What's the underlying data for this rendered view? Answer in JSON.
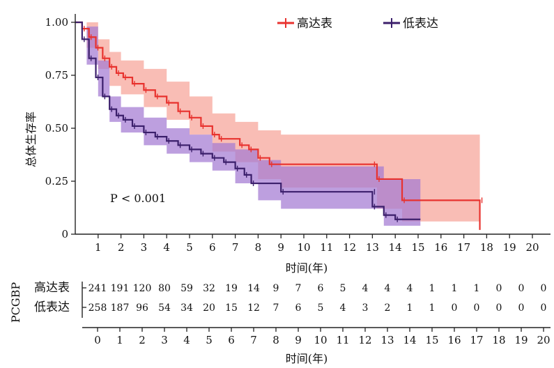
{
  "chart_data": {
    "type": "line",
    "subtype": "kaplan-meier",
    "title": "",
    "xlabel": "时间(年)",
    "ylabel": "总体生存率",
    "xlim": [
      0,
      20
    ],
    "ylim": [
      0,
      1
    ],
    "x_ticks": [
      1,
      2,
      3,
      4,
      5,
      6,
      7,
      8,
      9,
      10,
      11,
      12,
      13,
      14,
      15,
      16,
      17,
      18,
      19,
      20
    ],
    "y_ticks": [
      "0",
      "0.25",
      "0.50",
      "0.75",
      "1.00"
    ],
    "annotation": "P < 0.001",
    "legend_position": "top-right",
    "series": [
      {
        "name": "高达表",
        "color": "#e8322e",
        "band_color": "#f7a399",
        "steps": [
          [
            0,
            1.0
          ],
          [
            0.3,
            0.97
          ],
          [
            0.6,
            0.93
          ],
          [
            0.9,
            0.88
          ],
          [
            1.2,
            0.83
          ],
          [
            1.5,
            0.79
          ],
          [
            1.8,
            0.76
          ],
          [
            2.1,
            0.74
          ],
          [
            2.5,
            0.71
          ],
          [
            3.0,
            0.68
          ],
          [
            3.5,
            0.65
          ],
          [
            4.0,
            0.62
          ],
          [
            4.5,
            0.58
          ],
          [
            5.0,
            0.55
          ],
          [
            5.5,
            0.51
          ],
          [
            6.0,
            0.47
          ],
          [
            6.3,
            0.45
          ],
          [
            7.2,
            0.42
          ],
          [
            7.6,
            0.4
          ],
          [
            8.0,
            0.36
          ],
          [
            8.5,
            0.33
          ],
          [
            13.0,
            0.33
          ],
          [
            13.2,
            0.26
          ],
          [
            14.3,
            0.16
          ],
          [
            17.7,
            0.16
          ],
          [
            17.7,
            0.02
          ]
        ],
        "lower": [
          [
            0,
            1.0
          ],
          [
            0.5,
            0.88
          ],
          [
            1.0,
            0.78
          ],
          [
            1.5,
            0.7
          ],
          [
            2.0,
            0.66
          ],
          [
            3.0,
            0.6
          ],
          [
            4.0,
            0.54
          ],
          [
            5.0,
            0.47
          ],
          [
            6.0,
            0.39
          ],
          [
            7.0,
            0.34
          ],
          [
            8.0,
            0.26
          ],
          [
            9.0,
            0.22
          ],
          [
            13.0,
            0.22
          ],
          [
            13.2,
            0.12
          ],
          [
            14.3,
            0.06
          ],
          [
            17.7,
            0.06
          ]
        ],
        "upper": [
          [
            0,
            1.0
          ],
          [
            0.5,
            1.0
          ],
          [
            1.0,
            0.92
          ],
          [
            1.5,
            0.86
          ],
          [
            2.0,
            0.82
          ],
          [
            3.0,
            0.78
          ],
          [
            4.0,
            0.72
          ],
          [
            5.0,
            0.65
          ],
          [
            6.0,
            0.57
          ],
          [
            7.0,
            0.53
          ],
          [
            8.0,
            0.49
          ],
          [
            9.0,
            0.47
          ],
          [
            13.0,
            0.47
          ],
          [
            17.7,
            0.47
          ]
        ]
      },
      {
        "name": "低表达",
        "color": "#3b1f6b",
        "band_color": "#a47ad2",
        "steps": [
          [
            0,
            1.0
          ],
          [
            0.3,
            0.92
          ],
          [
            0.6,
            0.83
          ],
          [
            0.9,
            0.74
          ],
          [
            1.2,
            0.65
          ],
          [
            1.5,
            0.59
          ],
          [
            1.8,
            0.56
          ],
          [
            2.1,
            0.54
          ],
          [
            2.5,
            0.51
          ],
          [
            3.0,
            0.48
          ],
          [
            3.5,
            0.46
          ],
          [
            4.0,
            0.44
          ],
          [
            4.5,
            0.42
          ],
          [
            5.0,
            0.4
          ],
          [
            5.5,
            0.38
          ],
          [
            6.0,
            0.36
          ],
          [
            6.5,
            0.34
          ],
          [
            7.0,
            0.31
          ],
          [
            7.4,
            0.28
          ],
          [
            7.7,
            0.24
          ],
          [
            9.0,
            0.2
          ],
          [
            13.0,
            0.2
          ],
          [
            13.0,
            0.13
          ],
          [
            13.5,
            0.09
          ],
          [
            14.0,
            0.07
          ],
          [
            15.1,
            0.07
          ]
        ],
        "lower": [
          [
            0,
            1.0
          ],
          [
            0.5,
            0.8
          ],
          [
            1.0,
            0.65
          ],
          [
            1.5,
            0.53
          ],
          [
            2.0,
            0.48
          ],
          [
            3.0,
            0.42
          ],
          [
            4.0,
            0.38
          ],
          [
            5.0,
            0.34
          ],
          [
            6.0,
            0.3
          ],
          [
            7.0,
            0.24
          ],
          [
            8.0,
            0.16
          ],
          [
            9.0,
            0.12
          ],
          [
            13.0,
            0.12
          ],
          [
            13.5,
            0.04
          ],
          [
            15.1,
            0.04
          ]
        ],
        "upper": [
          [
            0,
            1.0
          ],
          [
            0.5,
            0.98
          ],
          [
            1.0,
            0.82
          ],
          [
            1.5,
            0.65
          ],
          [
            2.0,
            0.6
          ],
          [
            3.0,
            0.55
          ],
          [
            4.0,
            0.5
          ],
          [
            5.0,
            0.47
          ],
          [
            6.0,
            0.43
          ],
          [
            7.0,
            0.4
          ],
          [
            8.0,
            0.35
          ],
          [
            9.0,
            0.32
          ],
          [
            13.0,
            0.32
          ],
          [
            13.5,
            0.26
          ],
          [
            15.1,
            0.26
          ]
        ]
      }
    ],
    "risk_table": {
      "title": "PCGBP",
      "xlabel": "时间(年)",
      "x": [
        0,
        1,
        2,
        3,
        4,
        5,
        6,
        7,
        8,
        9,
        10,
        11,
        12,
        13,
        14,
        15,
        16,
        17,
        18,
        19,
        20
      ],
      "rows": [
        {
          "name": "高达表",
          "values": [
            "241",
            "191",
            "120",
            "80",
            "59",
            "32",
            "19",
            "14",
            "9",
            "7",
            "6",
            "5",
            "4",
            "4",
            "4",
            "1",
            "1",
            "1",
            "0",
            "0",
            "0"
          ]
        },
        {
          "name": "低表达",
          "values": [
            "258",
            "187",
            "96",
            "54",
            "34",
            "20",
            "15",
            "12",
            "7",
            "6",
            "5",
            "4",
            "3",
            "2",
            "1",
            "1",
            "0",
            "0",
            "0",
            "0",
            "0"
          ]
        }
      ]
    }
  }
}
